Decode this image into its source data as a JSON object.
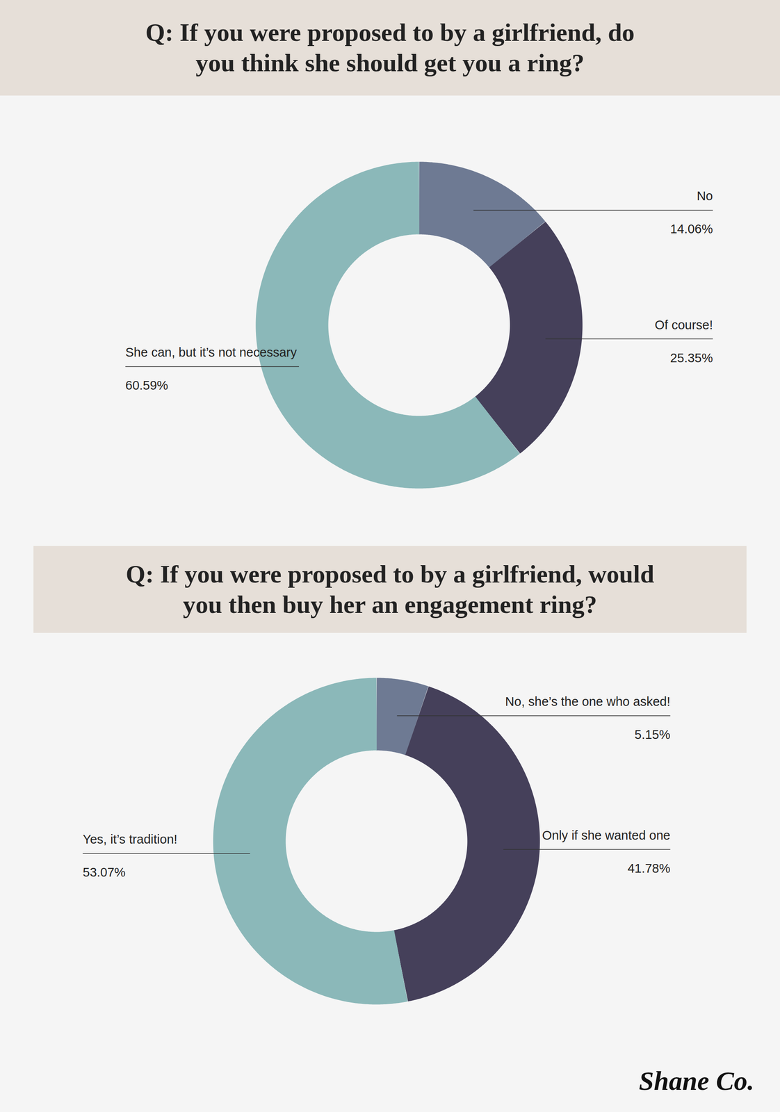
{
  "chart_data": [
    {
      "type": "donut",
      "title": "Q: If you were proposed to by a girlfriend, do you think she should get you a ring?",
      "categories": [
        "No",
        "Of course!",
        "She can, but it’s not necessary"
      ],
      "values": [
        14.06,
        25.35,
        60.59
      ],
      "value_labels": [
        "14.06%",
        "25.35%",
        "60.59%"
      ],
      "colors": [
        "#6e7a93",
        "#45405a",
        "#8bb8b9"
      ],
      "data_labels": true
    },
    {
      "type": "donut",
      "title": "Q: If you were proposed to by a girlfriend, would you then buy her an engagement ring?",
      "categories": [
        "No, she’s the one who asked!",
        "Only if she wanted one",
        "Yes, it’s tradition!"
      ],
      "values": [
        5.15,
        41.78,
        53.07
      ],
      "value_labels": [
        "5.15%",
        "41.78%",
        "53.07%"
      ],
      "colors": [
        "#6e7a93",
        "#45405a",
        "#8bb8b9"
      ],
      "data_labels": true
    }
  ],
  "logo": "Shane Co."
}
